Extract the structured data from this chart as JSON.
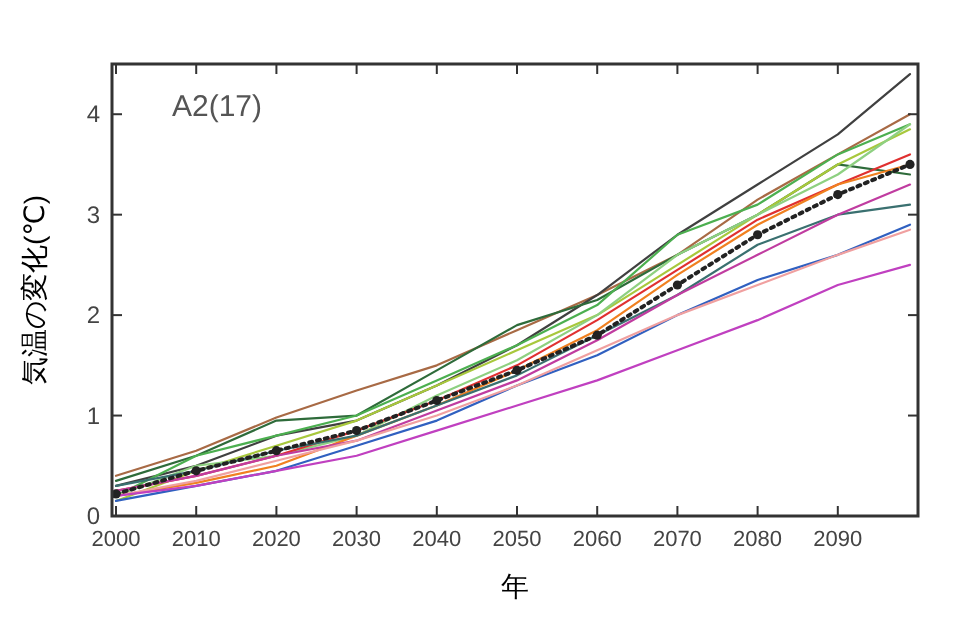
{
  "chart_data": {
    "type": "line",
    "xlabel": "年",
    "ylabel": "気温の変化(℃)",
    "annotations": [
      "A2(17)"
    ],
    "x": [
      2000,
      2010,
      2020,
      2030,
      2040,
      2050,
      2060,
      2070,
      2080,
      2090,
      2099
    ],
    "xlim": [
      1999.5,
      2100
    ],
    "ylim": [
      0,
      4.5
    ],
    "xticks": [
      2000,
      2010,
      2020,
      2030,
      2040,
      2050,
      2060,
      2070,
      2080,
      2090
    ],
    "yticks": [
      0,
      1,
      2,
      3,
      4
    ],
    "grid": false,
    "series": [
      {
        "color": "#a86a45",
        "values": [
          0.4,
          0.65,
          0.98,
          1.25,
          1.5,
          1.85,
          2.2,
          2.6,
          3.15,
          3.6,
          4.0
        ]
      },
      {
        "color": "#404040",
        "values": [
          0.3,
          0.5,
          0.8,
          0.95,
          1.3,
          1.7,
          2.2,
          2.8,
          3.3,
          3.8,
          4.4
        ]
      },
      {
        "color": "#2e6b3a",
        "values": [
          0.35,
          0.6,
          0.95,
          1.0,
          1.45,
          1.9,
          2.15,
          2.6,
          3.0,
          3.5,
          3.4
        ]
      },
      {
        "color": "#4caf50",
        "values": [
          0.2,
          0.6,
          0.8,
          1.0,
          1.35,
          1.7,
          2.1,
          2.8,
          3.1,
          3.6,
          3.9
        ]
      },
      {
        "color": "#a8c83c",
        "values": [
          0.15,
          0.45,
          0.7,
          0.95,
          1.3,
          1.65,
          2.0,
          2.5,
          3.0,
          3.5,
          3.85
        ]
      },
      {
        "color": "#8ed081",
        "values": [
          0.2,
          0.5,
          0.6,
          0.8,
          1.2,
          1.55,
          2.0,
          2.6,
          3.0,
          3.4,
          3.9
        ]
      },
      {
        "color": "#e03030",
        "values": [
          0.25,
          0.4,
          0.6,
          0.85,
          1.15,
          1.5,
          1.95,
          2.45,
          2.95,
          3.3,
          3.6
        ]
      },
      {
        "color": "#f08020",
        "values": [
          0.2,
          0.33,
          0.5,
          0.8,
          1.1,
          1.45,
          1.85,
          2.4,
          2.9,
          3.3,
          3.5
        ]
      },
      {
        "color": "#3a7070",
        "values": [
          0.3,
          0.45,
          0.65,
          0.8,
          1.1,
          1.4,
          1.8,
          2.2,
          2.7,
          3.0,
          3.1
        ]
      },
      {
        "color": "#c03ca0",
        "values": [
          0.25,
          0.4,
          0.6,
          0.75,
          1.05,
          1.35,
          1.75,
          2.2,
          2.6,
          3.0,
          3.3
        ]
      },
      {
        "color": "#3060c0",
        "values": [
          0.15,
          0.3,
          0.45,
          0.7,
          0.95,
          1.3,
          1.6,
          2.0,
          2.35,
          2.6,
          2.9
        ]
      },
      {
        "color": "#f0a0a0",
        "values": [
          0.2,
          0.35,
          0.55,
          0.75,
          1.0,
          1.3,
          1.65,
          2.0,
          2.3,
          2.6,
          2.85
        ]
      },
      {
        "color": "#c040c0",
        "values": [
          0.2,
          0.3,
          0.45,
          0.6,
          0.85,
          1.1,
          1.35,
          1.65,
          1.95,
          2.3,
          2.5
        ]
      },
      {
        "color": "#222222",
        "marker": "circle",
        "line_style": "dotted",
        "values": [
          0.22,
          0.45,
          0.65,
          0.85,
          1.15,
          1.45,
          1.8,
          2.3,
          2.8,
          3.2,
          3.5
        ]
      }
    ]
  }
}
